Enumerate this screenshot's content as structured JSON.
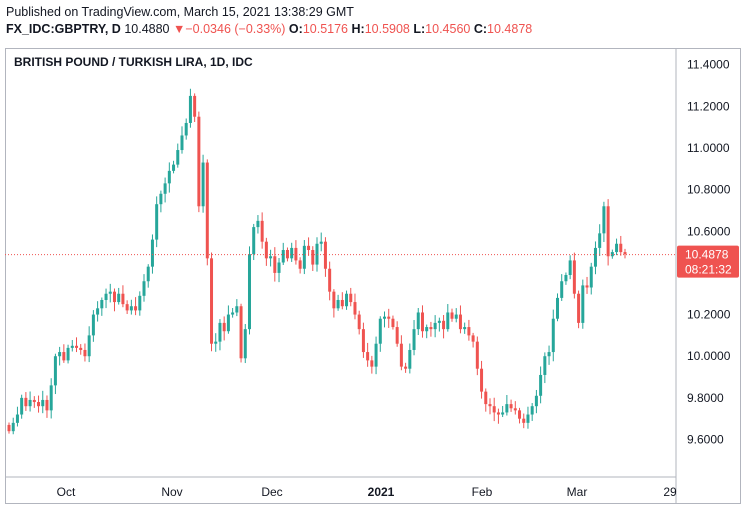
{
  "header": {
    "published": "Published on TradingView.com, March 15, 2021 13:38:29 GMT",
    "symbol": "FX_IDC:GBPTRY, D",
    "last": "10.4880",
    "change": "−0.0346 (−0.33%)",
    "o_label": "O:",
    "o_value": "10.5176",
    "h_label": "H:",
    "h_value": "10.5908",
    "l_label": "L:",
    "l_value": "10.4560",
    "c_label": "C:",
    "c_value": "10.4878"
  },
  "colors": {
    "up": "#26a69a",
    "down": "#ef5350",
    "text": "#131722",
    "border": "#b2b5be"
  },
  "chart_data": {
    "type": "candlestick",
    "title": "BRITISH POUND / TURKISH LIRA, 1D, IDC",
    "ylim": [
      9.42,
      11.48
    ],
    "yticks": [
      "11.4000",
      "11.2000",
      "11.0000",
      "10.8000",
      "10.6000",
      "10.4000",
      "10.2000",
      "10.0000",
      "9.8000",
      "9.6000"
    ],
    "xticks": [
      {
        "label": "Oct",
        "bold": false
      },
      {
        "label": "Nov",
        "bold": false
      },
      {
        "label": "Dec",
        "bold": false
      },
      {
        "label": "2021",
        "bold": true
      },
      {
        "label": "Feb",
        "bold": false
      },
      {
        "label": "Mar",
        "bold": false
      },
      {
        "label": "29",
        "bold": false
      }
    ],
    "last_price_label": "10.4878",
    "countdown_label": "08:21:32",
    "last_price": 10.4878,
    "closes": [
      9.64,
      9.68,
      9.72,
      9.8,
      9.76,
      9.79,
      9.78,
      9.76,
      9.79,
      9.74,
      9.86,
      10.0,
      10.02,
      9.98,
      10.04,
      10.05,
      10.04,
      10.03,
      10.0,
      10.1,
      10.2,
      10.23,
      10.27,
      10.3,
      10.31,
      10.26,
      10.3,
      10.25,
      10.22,
      10.24,
      10.22,
      10.29,
      10.36,
      10.43,
      10.56,
      10.73,
      10.78,
      10.83,
      10.89,
      10.92,
      10.99,
      11.06,
      11.12,
      11.25,
      11.15,
      10.72,
      10.93,
      10.47,
      10.06,
      10.07,
      10.16,
      10.12,
      10.2,
      10.21,
      10.24,
      9.99,
      10.13,
      10.49,
      10.62,
      10.65,
      10.55,
      10.47,
      10.48,
      10.4,
      10.45,
      10.51,
      10.47,
      10.52,
      10.46,
      10.42,
      10.53,
      10.51,
      10.44,
      10.54,
      10.55,
      10.42,
      10.31,
      10.23,
      10.27,
      10.24,
      10.3,
      10.26,
      10.2,
      10.13,
      10.02,
      9.98,
      9.95,
      10.06,
      10.18,
      10.19,
      10.18,
      10.14,
      10.06,
      9.95,
      9.94,
      10.03,
      10.13,
      10.21,
      10.12,
      10.14,
      10.13,
      10.16,
      10.17,
      10.13,
      10.21,
      10.18,
      10.2,
      10.13,
      10.14,
      10.1,
      10.07,
      9.94,
      9.83,
      9.77,
      9.76,
      9.73,
      9.72,
      9.73,
      9.77,
      9.75,
      9.74,
      9.7,
      9.68,
      9.72,
      9.76,
      9.81,
      9.91,
      10.0,
      10.02,
      10.18,
      10.28,
      10.36,
      10.39,
      10.46,
      10.3,
      10.16,
      10.34,
      10.33,
      10.43,
      10.52,
      10.59,
      10.72,
      10.48,
      10.5,
      10.54,
      10.5,
      10.49
    ]
  }
}
